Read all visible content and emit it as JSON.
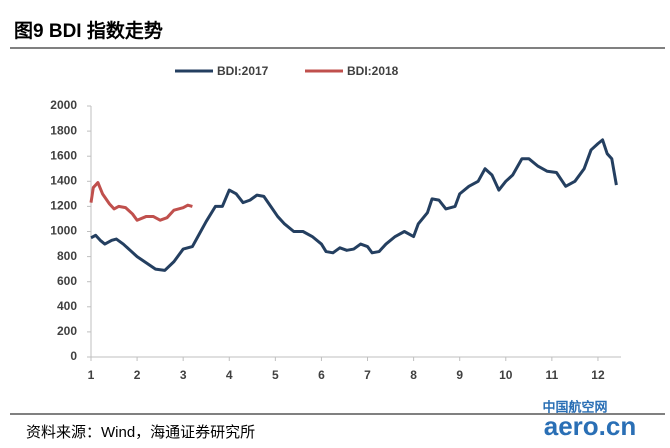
{
  "chart_data": {
    "type": "line",
    "title": "图9  BDI 指数走势",
    "source": "资料来源：Wind，海通证券研究所",
    "watermark": [
      "中国航空网",
      "aero.cn"
    ],
    "xlim": [
      1,
      12.5
    ],
    "xticks": [
      1,
      2,
      3,
      4,
      5,
      6,
      7,
      8,
      9,
      10,
      11,
      12
    ],
    "ylim": [
      0,
      2000
    ],
    "yticks": [
      0,
      200,
      400,
      600,
      800,
      1000,
      1200,
      1400,
      1600,
      1800,
      2000
    ],
    "grid": false,
    "legend": "top",
    "series": [
      {
        "name": "BDI:2017",
        "color": "#243f60",
        "x": [
          1.0,
          1.1,
          1.2,
          1.3,
          1.45,
          1.55,
          1.7,
          1.85,
          2.0,
          2.2,
          2.4,
          2.6,
          2.8,
          3.0,
          3.2,
          3.35,
          3.5,
          3.7,
          3.85,
          4.0,
          4.15,
          4.3,
          4.45,
          4.6,
          4.75,
          4.9,
          5.05,
          5.2,
          5.4,
          5.6,
          5.8,
          6.0,
          6.1,
          6.25,
          6.4,
          6.55,
          6.7,
          6.85,
          7.0,
          7.1,
          7.25,
          7.4,
          7.6,
          7.8,
          8.0,
          8.1,
          8.3,
          8.4,
          8.55,
          8.7,
          8.9,
          9.0,
          9.2,
          9.4,
          9.55,
          9.7,
          9.85,
          10.0,
          10.15,
          10.35,
          10.5,
          10.7,
          10.9,
          11.1,
          11.3,
          11.5,
          11.7,
          11.85,
          12.0,
          12.1,
          12.2,
          12.3,
          12.4
        ],
        "values": [
          950,
          970,
          930,
          900,
          930,
          940,
          900,
          850,
          800,
          750,
          700,
          690,
          760,
          860,
          880,
          980,
          1080,
          1200,
          1200,
          1330,
          1300,
          1230,
          1250,
          1290,
          1280,
          1200,
          1120,
          1060,
          1000,
          1000,
          960,
          900,
          840,
          830,
          870,
          850,
          860,
          900,
          880,
          830,
          840,
          900,
          960,
          1000,
          960,
          1060,
          1150,
          1260,
          1250,
          1180,
          1200,
          1300,
          1360,
          1400,
          1500,
          1450,
          1330,
          1400,
          1450,
          1580,
          1580,
          1520,
          1480,
          1470,
          1360,
          1400,
          1500,
          1650,
          1700,
          1730,
          1620,
          1580,
          1370
        ]
      },
      {
        "name": "BDI:2018",
        "color": "#c0504d",
        "x": [
          1.0,
          1.05,
          1.15,
          1.25,
          1.4,
          1.5,
          1.6,
          1.75,
          1.9,
          2.0,
          2.2,
          2.35,
          2.5,
          2.65,
          2.8,
          3.0,
          3.1,
          3.2
        ],
        "values": [
          1230,
          1350,
          1390,
          1300,
          1220,
          1180,
          1200,
          1190,
          1140,
          1090,
          1120,
          1120,
          1090,
          1110,
          1170,
          1190,
          1210,
          1200
        ]
      }
    ]
  }
}
